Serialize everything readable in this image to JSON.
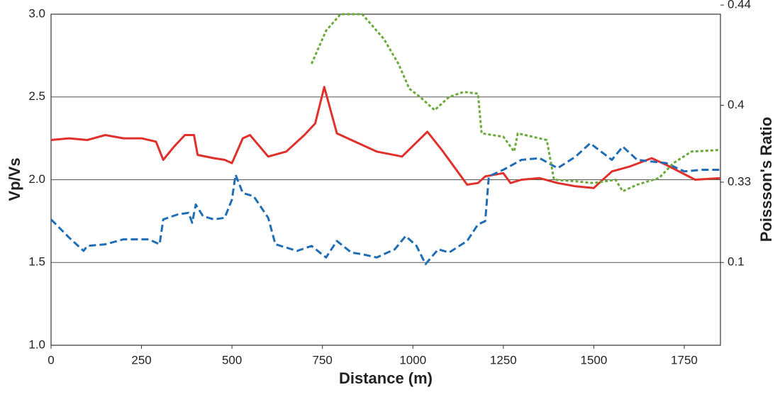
{
  "chart_data": {
    "type": "line",
    "xlabel": "Distance (m)",
    "ylabel": "Vp/Vs",
    "y2label": "Poissson's Ratio",
    "xlim": [
      0,
      1850
    ],
    "xticks": [
      0,
      250,
      500,
      750,
      1000,
      1250,
      1500,
      1750
    ],
    "ylim": [
      1,
      3
    ],
    "yticks": [
      {
        "value": 1,
        "label": "1.0"
      },
      1.5,
      {
        "value": 2,
        "label": "2.0"
      },
      2.5,
      {
        "value": 3,
        "label": "3.0"
      }
    ],
    "y2_scale": "poisson_ratio_from_vpvs",
    "y2ticks": [
      0.1,
      0.33,
      0.4,
      0.44
    ],
    "grid": true,
    "series": [
      {
        "color": "#e0302c",
        "style": "solid",
        "x": [
          0,
          50,
          100,
          150,
          200,
          250,
          290,
          310,
          340,
          370,
          395,
          405,
          450,
          480,
          500,
          530,
          550,
          600,
          650,
          700,
          730,
          755,
          790,
          850,
          900,
          970,
          1040,
          1080,
          1150,
          1180,
          1200,
          1250,
          1270,
          1300,
          1350,
          1400,
          1450,
          1500,
          1550,
          1600,
          1660,
          1700,
          1780,
          1850
        ],
        "values": [
          2.24,
          2.25,
          2.24,
          2.27,
          2.25,
          2.25,
          2.23,
          2.12,
          2.2,
          2.27,
          2.27,
          2.15,
          2.13,
          2.12,
          2.1,
          2.25,
          2.27,
          2.14,
          2.17,
          2.27,
          2.34,
          2.56,
          2.28,
          2.22,
          2.17,
          2.14,
          2.29,
          2.18,
          1.97,
          1.98,
          2.02,
          2.04,
          1.98,
          2.0,
          2.01,
          1.98,
          1.96,
          1.95,
          2.05,
          2.08,
          2.13,
          2.09,
          2.0,
          2.01
        ]
      },
      {
        "color": "#1f6eb5",
        "style": "dashed",
        "x": [
          0,
          50,
          90,
          100,
          150,
          200,
          270,
          300,
          310,
          350,
          380,
          390,
          400,
          420,
          450,
          480,
          500,
          510,
          530,
          560,
          600,
          620,
          680,
          720,
          760,
          790,
          830,
          860,
          900,
          950,
          980,
          1010,
          1035,
          1070,
          1100,
          1150,
          1180,
          1200,
          1210,
          1250,
          1300,
          1350,
          1400,
          1450,
          1490,
          1550,
          1580,
          1620,
          1700,
          1750,
          1800,
          1850
        ],
        "values": [
          1.76,
          1.65,
          1.57,
          1.6,
          1.61,
          1.64,
          1.64,
          1.61,
          1.76,
          1.79,
          1.8,
          1.74,
          1.85,
          1.78,
          1.76,
          1.77,
          1.88,
          2.03,
          1.92,
          1.9,
          1.77,
          1.61,
          1.57,
          1.6,
          1.53,
          1.63,
          1.56,
          1.55,
          1.53,
          1.58,
          1.66,
          1.6,
          1.49,
          1.58,
          1.56,
          1.63,
          1.73,
          1.75,
          2.02,
          2.06,
          2.12,
          2.13,
          2.07,
          2.14,
          2.22,
          2.12,
          2.2,
          2.12,
          2.1,
          2.05,
          2.06,
          2.06
        ]
      },
      {
        "color": "#6aaa3a",
        "style": "dotted",
        "x": [
          720,
          760,
          800,
          860,
          920,
          960,
          990,
          1020,
          1060,
          1100,
          1140,
          1180,
          1190,
          1250,
          1280,
          1290,
          1330,
          1370,
          1390,
          1450,
          1500,
          1560,
          1580,
          1620,
          1680,
          1720,
          1770,
          1850
        ],
        "values": [
          2.7,
          2.9,
          3.0,
          3.0,
          2.85,
          2.7,
          2.55,
          2.5,
          2.42,
          2.5,
          2.53,
          2.52,
          2.28,
          2.26,
          2.17,
          2.28,
          2.26,
          2.24,
          2.0,
          1.99,
          1.98,
          2.0,
          1.93,
          1.97,
          2.01,
          2.1,
          2.17,
          2.18
        ]
      }
    ]
  }
}
